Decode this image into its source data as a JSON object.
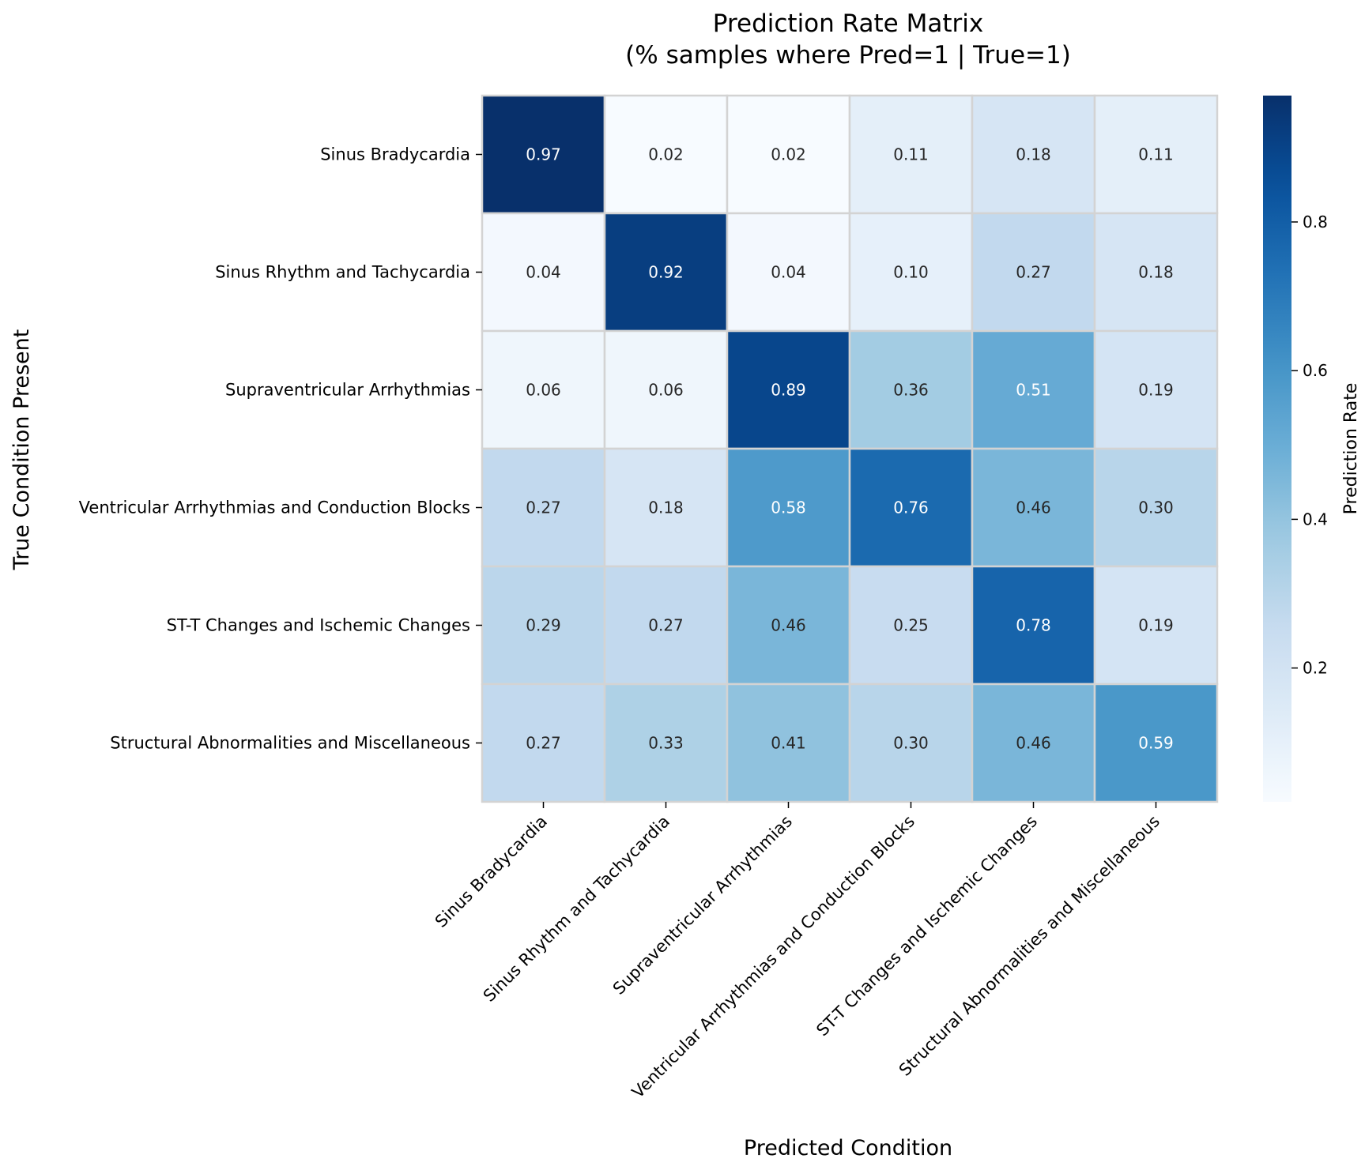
{
  "chart_data": {
    "type": "heatmap",
    "title_lines": [
      "Prediction Rate Matrix",
      "(% samples where Pred=1 | True=1)"
    ],
    "xlabel": "Predicted Condition",
    "ylabel": "True Condition Present",
    "row_labels": [
      "Sinus Bradycardia",
      "Sinus Rhythm and Tachycardia",
      "Supraventricular Arrhythmias",
      "Ventricular Arrhythmias and Conduction Blocks",
      "ST-T Changes and Ischemic Changes",
      "Structural Abnormalities and Miscellaneous"
    ],
    "col_labels": [
      "Sinus Bradycardia",
      "Sinus Rhythm and Tachycardia",
      "Supraventricular Arrhythmias",
      "Ventricular Arrhythmias and Conduction Blocks",
      "ST-T Changes and Ischemic Changes",
      "Structural Abnormalities and Miscellaneous"
    ],
    "values": [
      [
        0.97,
        0.02,
        0.02,
        0.11,
        0.18,
        0.11
      ],
      [
        0.04,
        0.92,
        0.04,
        0.1,
        0.27,
        0.18
      ],
      [
        0.06,
        0.06,
        0.89,
        0.36,
        0.51,
        0.19
      ],
      [
        0.27,
        0.18,
        0.58,
        0.76,
        0.46,
        0.3
      ],
      [
        0.29,
        0.27,
        0.46,
        0.25,
        0.78,
        0.19
      ],
      [
        0.27,
        0.33,
        0.41,
        0.3,
        0.46,
        0.59
      ]
    ],
    "value_format": "0.00",
    "colormap": "Blues",
    "vmin": 0.02,
    "vmax": 0.97,
    "colorbar": {
      "label": "Prediction Rate",
      "ticks": [
        0.2,
        0.4,
        0.6,
        0.8
      ],
      "tick_labels": [
        "0.2",
        "0.4",
        "0.6",
        "0.8"
      ]
    },
    "colors": {
      "cell_border": "#d3d3d3",
      "text_dark": "#262626",
      "text_light": "#ffffff"
    }
  }
}
